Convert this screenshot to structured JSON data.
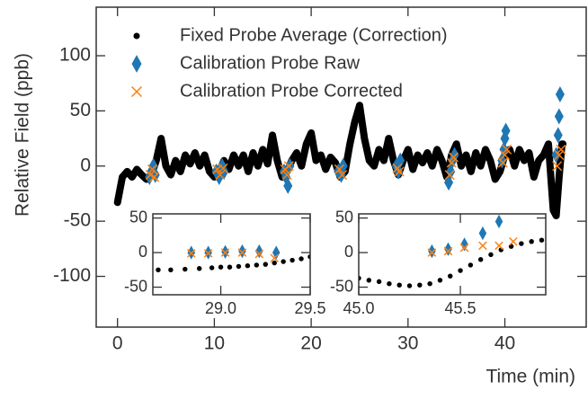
{
  "chart_data": [
    {
      "type": "scatter",
      "xlabel": "Time (min)",
      "ylabel": "Relative Field (ppb)",
      "xlim": [
        -2.2,
        48.4
      ],
      "ylim": [
        -146,
        144
      ],
      "xticks": [
        0,
        10,
        20,
        30,
        40
      ],
      "yticks": [
        -100,
        -50,
        0,
        50,
        100
      ],
      "legend": "upper left",
      "series": [
        {
          "name": "Fixed Probe Average (Correction)",
          "color": "#000000",
          "marker": "line",
          "x": [
            0,
            0.5,
            1,
            1.5,
            2,
            2.5,
            3,
            3.5,
            4,
            4.5,
            5,
            5.5,
            6,
            6.5,
            7,
            7.5,
            8,
            8.5,
            9,
            9.5,
            10,
            10.5,
            11,
            11.5,
            12,
            12.5,
            13,
            13.5,
            14,
            14.5,
            15,
            15.5,
            16,
            16.5,
            17,
            17.5,
            18,
            18.5,
            19,
            19.5,
            20,
            20.5,
            21,
            21.5,
            22,
            22.5,
            23,
            23.5,
            24,
            24.5,
            25,
            25.5,
            26,
            26.5,
            27,
            27.5,
            28,
            28.5,
            29,
            29.5,
            30,
            30.5,
            31,
            31.5,
            32,
            32.5,
            33,
            33.5,
            34,
            34.5,
            35,
            35.5,
            36,
            36.5,
            37,
            37.5,
            38,
            38.5,
            39,
            39.5,
            40,
            40.5,
            41,
            41.5,
            42,
            42.5,
            43,
            43.5,
            44,
            44.5,
            45,
            45.3,
            45.6,
            45.9,
            46
          ],
          "values": [
            -33,
            -10,
            -5,
            -10,
            -3,
            -8,
            -12,
            -8,
            5,
            25,
            0,
            -8,
            5,
            -5,
            10,
            2,
            12,
            0,
            10,
            -5,
            -10,
            -5,
            5,
            -3,
            10,
            0,
            10,
            -5,
            12,
            0,
            15,
            2,
            28,
            5,
            -10,
            -5,
            5,
            12,
            0,
            20,
            30,
            5,
            10,
            -3,
            8,
            3,
            -10,
            -5,
            20,
            40,
            55,
            25,
            5,
            0,
            15,
            5,
            25,
            5,
            -8,
            5,
            15,
            -3,
            10,
            3,
            12,
            0,
            15,
            5,
            -10,
            10,
            20,
            0,
            10,
            -5,
            12,
            0,
            15,
            5,
            -12,
            -5,
            10,
            15,
            0,
            15,
            5,
            12,
            -10,
            5,
            10,
            20,
            -40,
            -45,
            -10,
            20,
            20
          ]
        },
        {
          "name": "Calibration Probe Raw",
          "color": "#1f77b4",
          "marker": "diamond",
          "x": [
            3.3,
            3.5,
            3.7,
            3.9,
            10.2,
            10.5,
            10.8,
            11.0,
            17.2,
            17.4,
            17.6,
            17.8,
            22.8,
            23.1,
            23.3,
            28.8,
            29.0,
            29.2,
            34.2,
            34.4,
            34.6,
            34.8,
            39.7,
            39.9,
            40.0,
            40.1,
            45.3,
            45.5,
            45.6,
            45.7
          ],
          "values": [
            -10,
            -5,
            0,
            -8,
            -5,
            -10,
            0,
            -5,
            -5,
            -10,
            -18,
            0,
            -5,
            -8,
            0,
            0,
            -5,
            5,
            -15,
            -5,
            5,
            10,
            5,
            15,
            25,
            32,
            10,
            28,
            45,
            65
          ]
        },
        {
          "name": "Calibration Probe Corrected",
          "color": "#ff7f0e",
          "marker": "x",
          "x": [
            3.4,
            3.6,
            3.8,
            10.3,
            10.6,
            10.9,
            17.3,
            17.5,
            17.7,
            22.9,
            23.2,
            28.9,
            29.1,
            34.3,
            34.5,
            34.7,
            39.8,
            40.0,
            40.2,
            45.4,
            45.6,
            45.8
          ],
          "values": [
            -8,
            -3,
            -10,
            -3,
            -8,
            -2,
            -3,
            -8,
            0,
            -3,
            -8,
            -2,
            -5,
            -8,
            3,
            8,
            3,
            10,
            15,
            0,
            10,
            15
          ]
        }
      ]
    },
    {
      "type": "scatter",
      "xlim": [
        28.62,
        29.5
      ],
      "ylim": [
        -61,
        56
      ],
      "xticks": [
        {
          "value": 29.0,
          "label": "29.0"
        },
        {
          "value": 29.5,
          "label": "29.5"
        }
      ],
      "yticks": [
        -50,
        0,
        50
      ],
      "series": [
        {
          "color": "#000000",
          "marker": "circle",
          "x": [
            28.65,
            28.72,
            28.8,
            28.88,
            28.95,
            29.0,
            29.05,
            29.1,
            29.15,
            29.2,
            29.25,
            29.3,
            29.35,
            29.4,
            29.45,
            29.5
          ],
          "values": [
            -25,
            -25,
            -24,
            -23,
            -22,
            -21,
            -21,
            -20,
            -19,
            -18,
            -17,
            -15,
            -13,
            -11,
            -9,
            -6
          ]
        },
        {
          "color": "#1f77b4",
          "marker": "diamond",
          "x": [
            28.835,
            28.93,
            29.025,
            29.12,
            29.215,
            29.31
          ],
          "values": [
            0,
            0,
            1,
            2,
            2,
            0
          ]
        },
        {
          "color": "#ff7f0e",
          "marker": "x",
          "x": [
            28.835,
            28.93,
            29.025,
            29.12,
            29.215,
            29.3
          ],
          "values": [
            -1,
            -1,
            0,
            0,
            -2,
            -8
          ]
        }
      ]
    },
    {
      "type": "scatter",
      "xlim": [
        45.0,
        45.92
      ],
      "ylim": [
        -61,
        56
      ],
      "xticks": [
        {
          "value": 45.0,
          "label": "45.0"
        },
        {
          "value": 45.5,
          "label": "45.5"
        }
      ],
      "yticks": [
        -50,
        0,
        50
      ],
      "series": [
        {
          "color": "#000000",
          "marker": "circle",
          "x": [
            45.0,
            45.05,
            45.1,
            45.15,
            45.2,
            45.25,
            45.3,
            45.35,
            45.4,
            45.45,
            45.5,
            45.55,
            45.6,
            45.65,
            45.7,
            45.75,
            45.8,
            45.85,
            45.9
          ],
          "values": [
            -37,
            -40,
            -42,
            -45,
            -47,
            -48,
            -47,
            -45,
            -40,
            -34,
            -26,
            -18,
            -10,
            -3,
            4,
            9,
            13,
            16,
            18
          ]
        },
        {
          "color": "#1f77b4",
          "marker": "diamond",
          "x": [
            45.36,
            45.44,
            45.52,
            45.61,
            45.69
          ],
          "values": [
            2,
            5,
            12,
            28,
            45
          ]
        },
        {
          "color": "#ff7f0e",
          "marker": "x",
          "x": [
            45.36,
            45.44,
            45.52,
            45.61,
            45.69,
            45.76
          ],
          "values": [
            0,
            2,
            7,
            10,
            10,
            16
          ]
        }
      ]
    }
  ]
}
